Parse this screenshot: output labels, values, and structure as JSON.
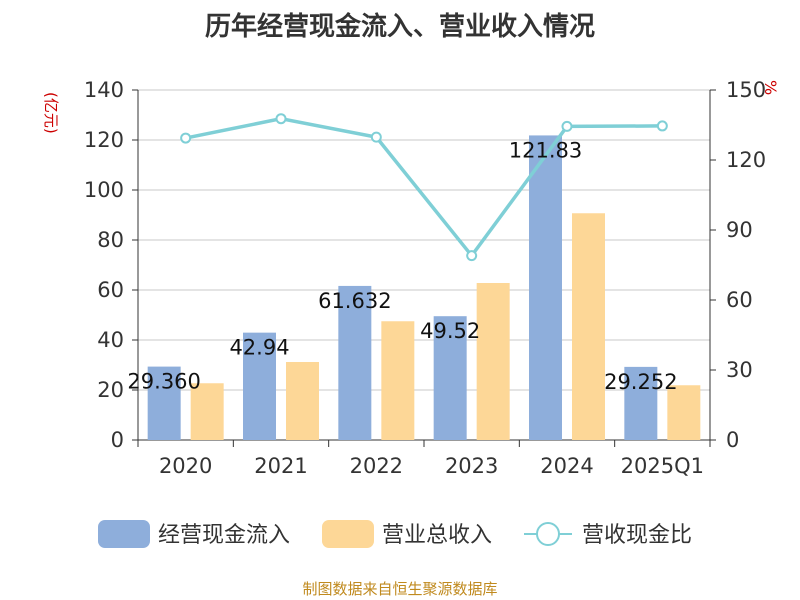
{
  "title": "历年经营现金流入、营业收入情况",
  "source": "制图数据来自恒生聚源数据库",
  "chart_data": {
    "type": "bar",
    "categories": [
      "2020",
      "2021",
      "2022",
      "2023",
      "2024",
      "2025Q1"
    ],
    "ylim_left": [
      0,
      140
    ],
    "ylim_right": [
      0,
      150
    ],
    "yticks_left": [
      0,
      20,
      40,
      60,
      80,
      100,
      120,
      140
    ],
    "yticks_right": [
      0,
      30,
      60,
      90,
      120,
      150
    ],
    "ylabel_left": "(亿元)",
    "ylabel_right": "%",
    "grid": true,
    "legend_position": "bottom",
    "series": [
      {
        "name": "经营现金流入",
        "type": "bar",
        "axis": "left",
        "color": "#8eaedb",
        "values": [
          29.36,
          42.94,
          61.63,
          49.52,
          121.83,
          29.25
        ],
        "labels": [
          "29.360",
          "42.94",
          "61.632",
          "49.52",
          "121.83",
          "29.252"
        ]
      },
      {
        "name": "营业总收入",
        "type": "bar",
        "axis": "left",
        "color": "#fdd797",
        "values": [
          22.7,
          31.2,
          47.5,
          62.8,
          90.7,
          21.9
        ]
      },
      {
        "name": "营收现金比",
        "type": "line",
        "axis": "right",
        "color": "#7fcfd6",
        "values": [
          129.4,
          137.7,
          129.8,
          79.0,
          134.4,
          134.6
        ]
      }
    ]
  }
}
